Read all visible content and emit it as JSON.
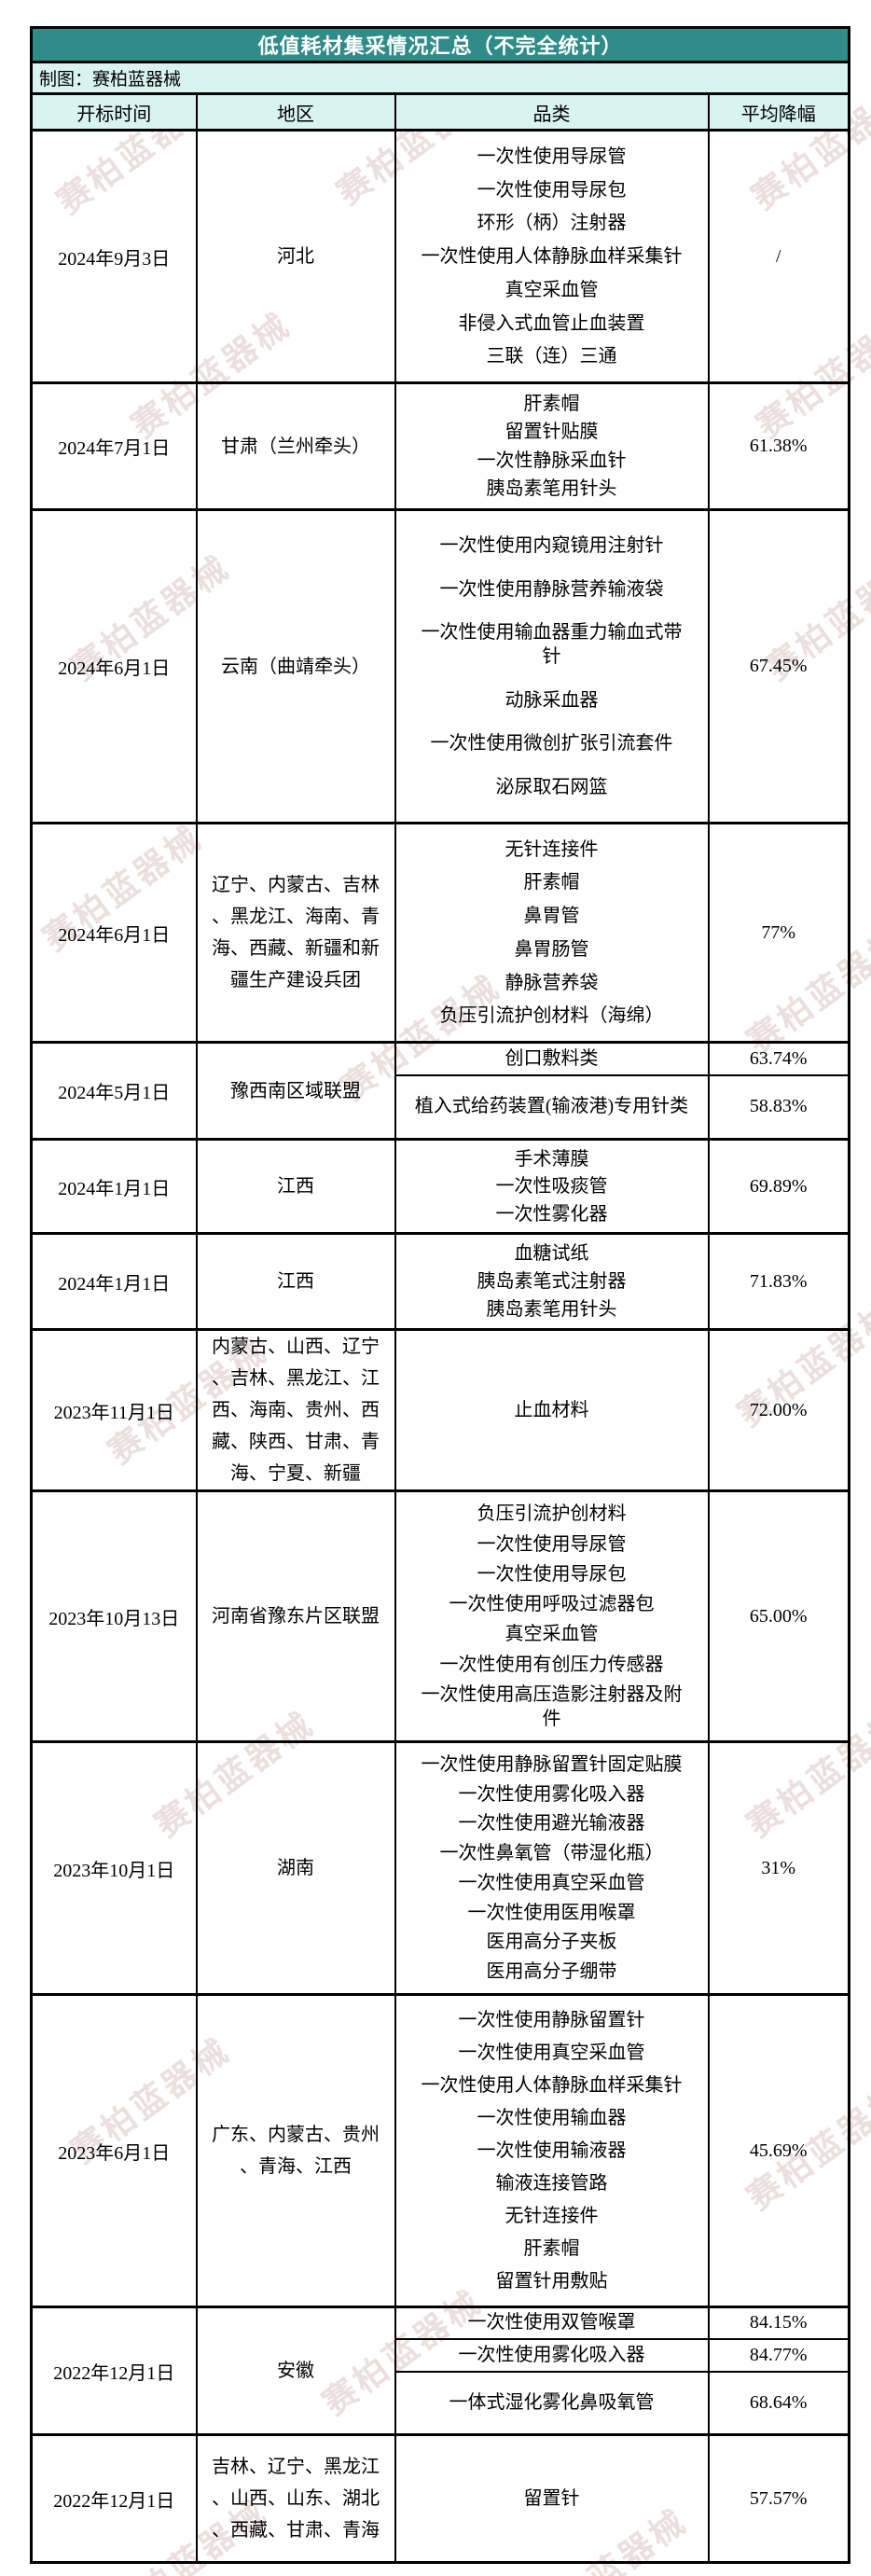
{
  "title": "低值耗材集采情况汇总（不完全统计）",
  "subtitle": "制图：赛柏蓝器械",
  "watermark": {
    "text": "赛柏蓝器械"
  },
  "colors": {
    "title_bar": "#2f8c88",
    "header_bg": "#d9f3f0",
    "border": "#000000",
    "watermark": "#e0cdcd"
  },
  "columns": [
    "开标时间",
    "地区",
    "品类",
    "平均降幅"
  ],
  "rows": [
    {
      "date": "2024年9月3日",
      "region": "河北",
      "items": [
        "一次性使用导尿管",
        "一次性使用导尿包",
        "环形（柄）注射器",
        "一次性使用人体静脉血样采集针",
        "真空采血管",
        "非侵入式血管止血装置",
        "三联（连）三通"
      ],
      "avg": "/"
    },
    {
      "date": "2024年7月1日",
      "region": "甘肃（兰州牵头）",
      "items": [
        "肝素帽",
        "留置针贴膜",
        "一次性静脉采血针",
        "胰岛素笔用针头"
      ],
      "avg": "61.38%"
    },
    {
      "date": "2024年6月1日",
      "region": "云南（曲靖牵头）",
      "items": [
        "一次性使用内窥镜用注射针",
        "一次性使用静脉营养输液袋",
        "一次性使用输血器重力输血式带针",
        "动脉采血器",
        "一次性使用微创扩张引流套件",
        "泌尿取石网篮"
      ],
      "avg": "67.45%"
    },
    {
      "date": "2024年6月1日",
      "region": "辽宁、内蒙古、吉林、黑龙江、海南、青海、西藏、新疆和新疆生产建设兵团",
      "items": [
        "无针连接件",
        "肝素帽",
        "鼻胃管",
        "鼻胃肠管",
        "静脉营养袋",
        "负压引流护创材料（海绵）"
      ],
      "avg": "77%"
    },
    {
      "date": "2024年5月1日",
      "region": "豫西南区域联盟",
      "subrows": [
        {
          "item": "创口敷料类",
          "avg": "63.74%"
        },
        {
          "item": "植入式给药装置(输液港)专用针类",
          "avg": "58.83%"
        }
      ]
    },
    {
      "date": "2024年1月1日",
      "region": "江西",
      "items": [
        "手术薄膜",
        "一次性吸痰管",
        "一次性雾化器"
      ],
      "avg": "69.89%"
    },
    {
      "date": "2024年1月1日",
      "region": "江西",
      "items": [
        "血糖试纸",
        "胰岛素笔式注射器",
        "胰岛素笔用针头"
      ],
      "avg": "71.83%"
    },
    {
      "date": "2023年11月1日",
      "region": "内蒙古、山西、辽宁、吉林、黑龙江、江西、海南、贵州、西藏、陕西、甘肃、青海、宁夏、新疆",
      "items": [
        "止血材料"
      ],
      "avg": "72.00%"
    },
    {
      "date": "2023年10月13日",
      "region": "河南省豫东片区联盟",
      "items": [
        "负压引流护创材料",
        "一次性使用导尿管",
        "一次性使用导尿包",
        "一次性使用呼吸过滤器包",
        "真空采血管",
        "一次性使用有创压力传感器",
        "一次性使用高压造影注射器及附件"
      ],
      "avg": "65.00%"
    },
    {
      "date": "2023年10月1日",
      "region": "湖南",
      "items": [
        "一次性使用静脉留置针固定贴膜",
        "一次性使用雾化吸入器",
        "一次性使用避光输液器",
        "一次性鼻氧管（带湿化瓶）",
        "一次性使用真空采血管",
        "一次性使用医用喉罩",
        "医用高分子夹板",
        "医用高分子绷带"
      ],
      "avg": "31%"
    },
    {
      "date": "2023年6月1日",
      "region": "广东、内蒙古、贵州、青海、江西",
      "items": [
        "一次性使用静脉留置针",
        "一次性使用真空采血管",
        "一次性使用人体静脉血样采集针",
        "一次性使用输血器",
        "一次性使用输液器",
        "输液连接管路",
        "无针连接件",
        "肝素帽",
        "留置针用敷贴"
      ],
      "avg": "45.69%"
    },
    {
      "date": "2022年12月1日",
      "region": "安徽",
      "subrows": [
        {
          "item": "一次性使用双管喉罩",
          "avg": "84.15%"
        },
        {
          "item": "一次性使用雾化吸入器",
          "avg": "84.77%"
        },
        {
          "item": "一体式湿化雾化鼻吸氧管",
          "avg": "68.64%"
        }
      ]
    },
    {
      "date": "2022年12月1日",
      "region": "吉林、辽宁、黑龙江、山西、山东、湖北、西藏、甘肃、青海",
      "items": [
        "留置针"
      ],
      "avg": "57.57%"
    }
  ]
}
